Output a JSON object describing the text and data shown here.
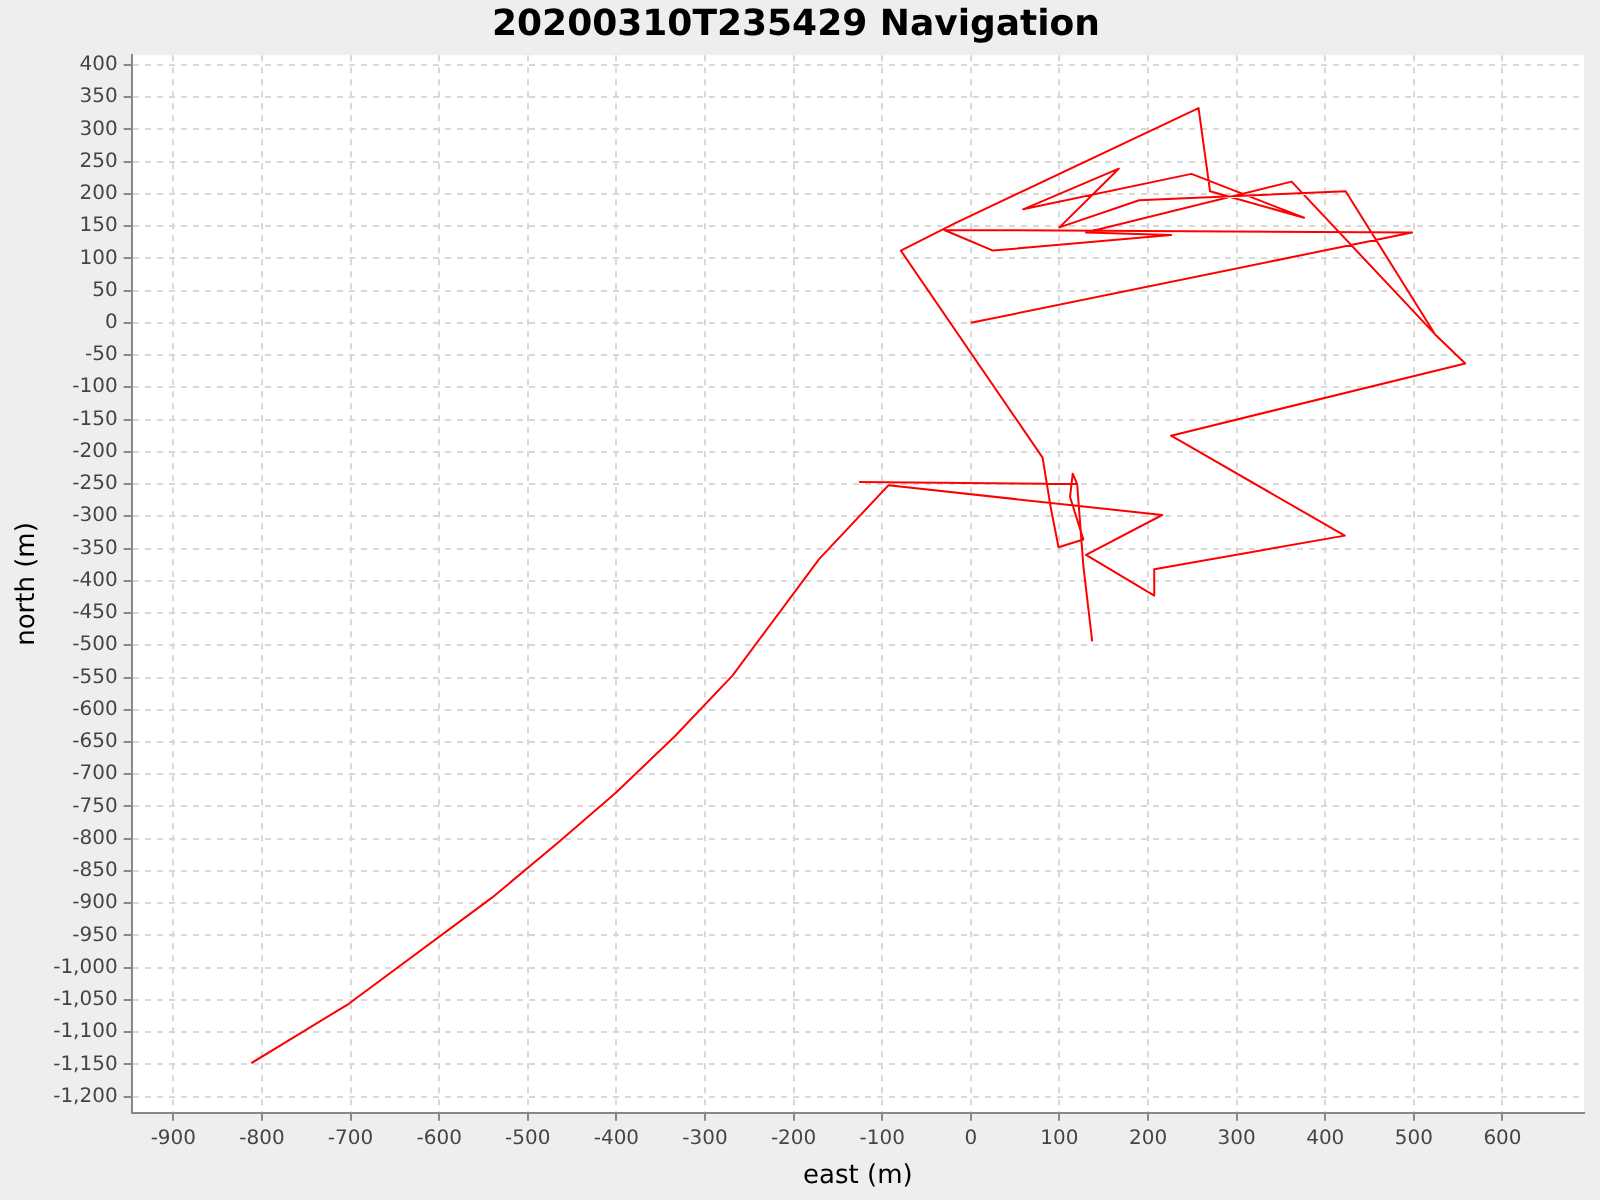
{
  "chart_data": {
    "type": "line",
    "title": "20200310T235429 Navigation",
    "xlabel": "east (m)",
    "ylabel": "north (m)",
    "x": [
      0,
      498,
      -30,
      25,
      226,
      130,
      362,
      524,
      558,
      226,
      422,
      207,
      207,
      130,
      216,
      -93,
      -171,
      -269,
      -334,
      -400,
      -464,
      -540,
      -702,
      -812,
      null,
      -126,
      120,
      115,
      112,
      127,
      99,
      90,
      81,
      -79,
      -17,
      257,
      270,
      376,
      249,
      59,
      167,
      100,
      190,
      423,
      524,
      null,
      120,
      127,
      137
    ],
    "series": [
      {
        "color": "#ff0000",
        "values": [
          0,
          140,
          144,
          112,
          136,
          140,
          219,
          -18,
          -63,
          -175,
          -330,
          -382,
          -423,
          -360,
          -298,
          -252,
          -366,
          -547,
          -641,
          -728,
          -804,
          -891,
          -1056,
          -1148,
          null,
          -247,
          -250,
          -234,
          -270,
          -336,
          -348,
          -285,
          -209,
          112,
          155,
          333,
          204,
          163,
          231,
          176,
          239,
          148,
          190,
          204,
          -18,
          null,
          -250,
          -377,
          -494
        ]
      }
    ],
    "xlim": [
      -947,
      692
    ],
    "ylim": [
      -1225,
      415
    ],
    "xticks": [
      -900,
      -800,
      -700,
      -600,
      -500,
      -400,
      -300,
      -200,
      -100,
      0,
      100,
      200,
      300,
      400,
      500,
      600
    ],
    "yticks": [
      {
        "value": -1200,
        "label": "-1,200"
      },
      {
        "value": -1150,
        "label": "-1,150"
      },
      {
        "value": -1100,
        "label": "-1,100"
      },
      {
        "value": -1050,
        "label": "-1,050"
      },
      {
        "value": -1000,
        "label": "-1,000"
      },
      -950,
      -900,
      -850,
      -800,
      -750,
      -700,
      -650,
      -600,
      -550,
      -500,
      -450,
      -400,
      -350,
      -300,
      -250,
      -200,
      -150,
      -100,
      -50,
      0,
      50,
      100,
      150,
      200,
      250,
      300,
      350,
      400
    ],
    "grid": true,
    "legend": false,
    "marker": "none",
    "line_style": "solid"
  }
}
